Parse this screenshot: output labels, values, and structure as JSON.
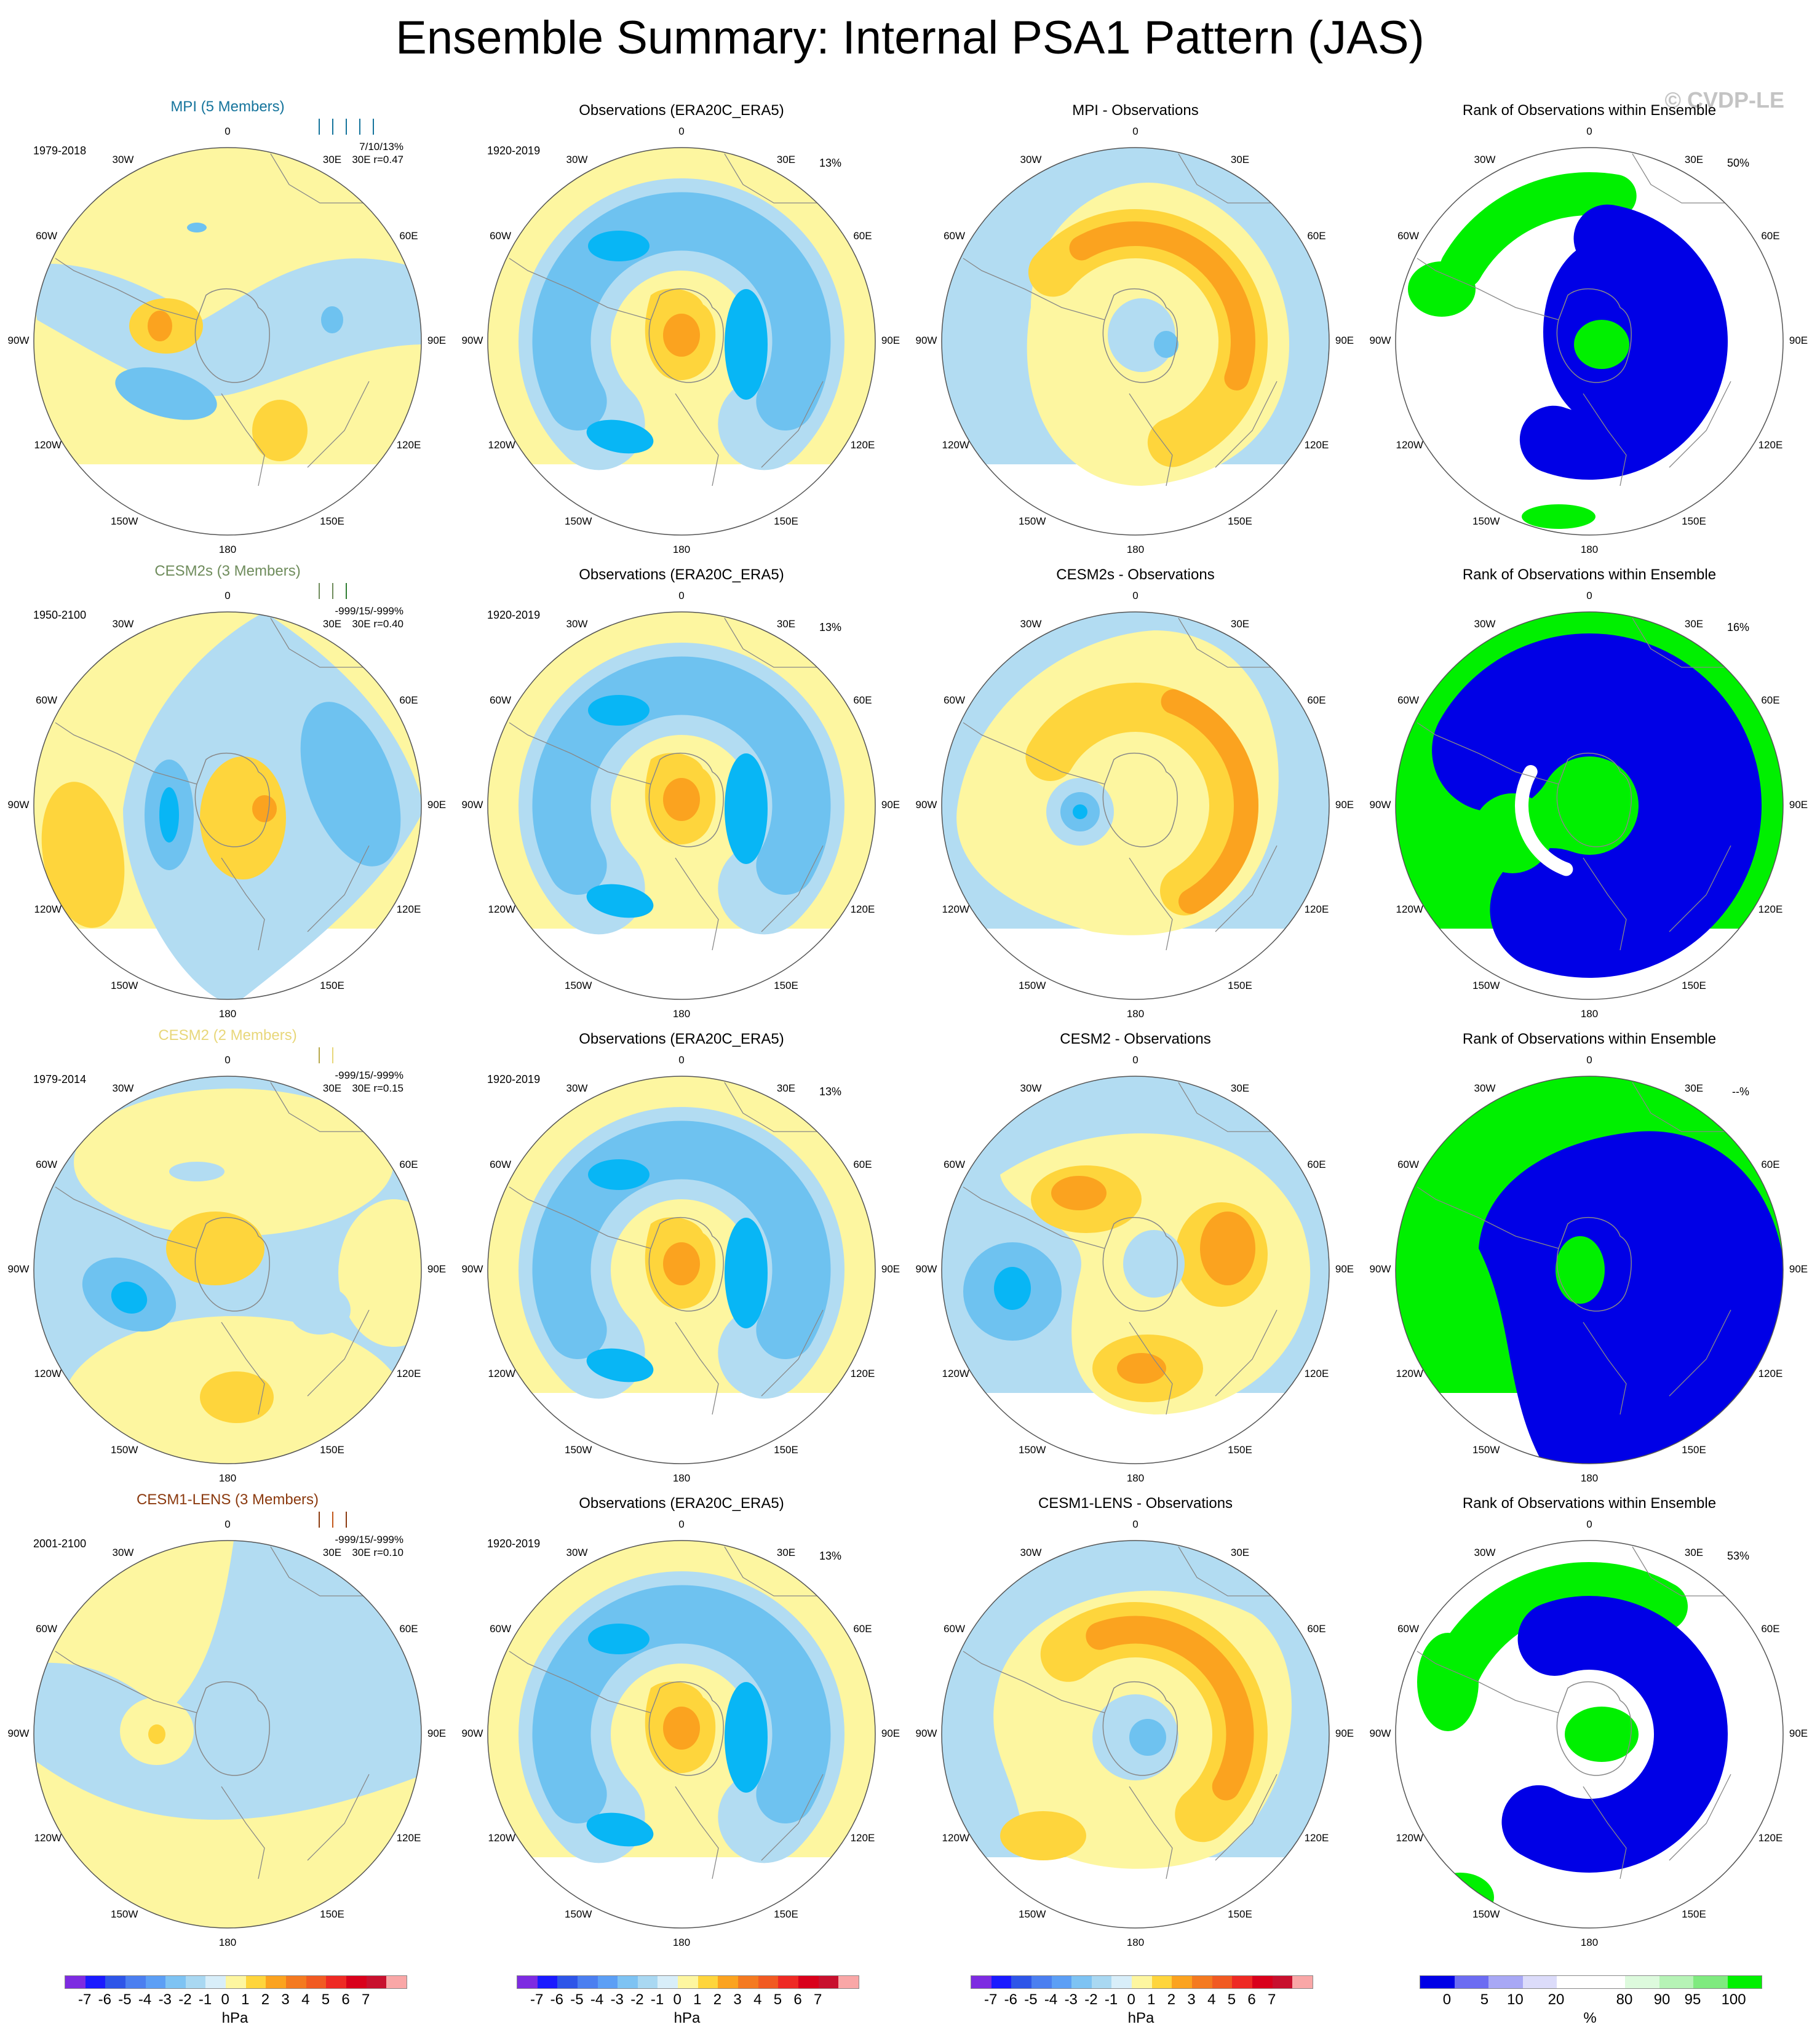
{
  "figure": {
    "title": "Ensemble Summary: Internal PSA1 Pattern (JAS)",
    "watermark": "© CVDP-LE"
  },
  "lon_labels": [
    "0",
    "30E",
    "60E",
    "90E",
    "120E",
    "150E",
    "180",
    "150W",
    "120W",
    "90W",
    "60W",
    "30W"
  ],
  "colors": {
    "light_yellow": "#fdf6a0",
    "yellow": "#fed53c",
    "orange": "#fba31f",
    "dark_orange": "#f47a20",
    "light_blue": "#b2dcf2",
    "blue": "#6ec2f0",
    "bright_blue": "#08b6f5",
    "rank_blue": "#0000e6",
    "rank_green": "#00f000",
    "coast": "#888888"
  },
  "rows": [
    {
      "model": {
        "title": "MPI (5 Members)",
        "title_color": "#15749c",
        "period": "1979-2018",
        "stats_line1": "7/10/13%",
        "stats_line2": "30E      r=0.47",
        "bars": [
          "#15749c",
          "#15749c",
          "#15749c",
          "#15749c",
          "#15749c"
        ]
      },
      "obs": {
        "title": "Observations (ERA20C_ERA5)",
        "period": "1920-2019",
        "pct": "13%"
      },
      "diff": {
        "title": "MPI - Observations"
      },
      "rank": {
        "title": "Rank of Observations within Ensemble",
        "pct": "50%"
      }
    },
    {
      "model": {
        "title": "CESM2s (3 Members)",
        "title_color": "#6f8c5c",
        "period": "1950-2100",
        "stats_line1": "-999/15/-999%",
        "stats_line2": "30E  r=0.40",
        "bars": [
          "#6f8c5c",
          "#6f8c5c",
          "#2e7d32"
        ]
      },
      "obs": {
        "title": "Observations (ERA20C_ERA5)",
        "period": "1920-2019",
        "pct": "13%"
      },
      "diff": {
        "title": "CESM2s - Observations"
      },
      "rank": {
        "title": "Rank of Observations within Ensemble",
        "pct": "16%"
      }
    },
    {
      "model": {
        "title": "CESM2 (2 Members)",
        "title_color": "#e8d77a",
        "period": "1979-2014",
        "stats_line1": "-999/15/-999%",
        "stats_line2": "30E  r=0.15",
        "bars": [
          "#b7a84a",
          "#e8d77a"
        ]
      },
      "obs": {
        "title": "Observations (ERA20C_ERA5)",
        "period": "1920-2019",
        "pct": "13%"
      },
      "diff": {
        "title": "CESM2 - Observations"
      },
      "rank": {
        "title": "Rank of Observations within Ensemble",
        "pct": "--%"
      }
    },
    {
      "model": {
        "title": "CESM1-LENS (3 Members)",
        "title_color": "#8b3a0f",
        "period": "2001-2100",
        "stats_line1": "-999/15/-999%",
        "stats_line2": "30E  r=0.10",
        "bars": [
          "#8b3a0f",
          "#c2571a",
          "#8b3a0f"
        ]
      },
      "obs": {
        "title": "Observations (ERA20C_ERA5)",
        "period": "1920-2019",
        "pct": "13%"
      },
      "diff": {
        "title": "CESM1-LENS - Observations"
      },
      "rank": {
        "title": "Rank of Observations within Ensemble",
        "pct": "53%"
      }
    }
  ],
  "colorbars": {
    "hpa": {
      "colors": [
        "#7d2be1",
        "#1a1aff",
        "#2e55e8",
        "#4b7ff0",
        "#5c9ff5",
        "#7ec3f3",
        "#a9d8f2",
        "#d8eef9",
        "#fdf6a0",
        "#fed53c",
        "#fba31f",
        "#f47a20",
        "#f15a22",
        "#ee2a24",
        "#d9001b",
        "#c8102e",
        "#f9a7a7"
      ],
      "ticks": [
        "-7",
        "-6",
        "-5",
        "-4",
        "-3",
        "-2",
        "-1",
        "0",
        "1",
        "2",
        "3",
        "4",
        "5",
        "6",
        "7"
      ],
      "unit": "hPa"
    },
    "rank": {
      "colors": [
        "#0000e6",
        "#6c6cf2",
        "#a8a8f5",
        "#dcdcfa",
        "#ffffff",
        "#ffffff",
        "#ddfadd",
        "#b6f3b6",
        "#7fea7f",
        "#00f000"
      ],
      "ticks": [
        "0",
        "5",
        "10",
        "20",
        "80",
        "90",
        "95",
        "100"
      ],
      "unit": "%"
    }
  }
}
